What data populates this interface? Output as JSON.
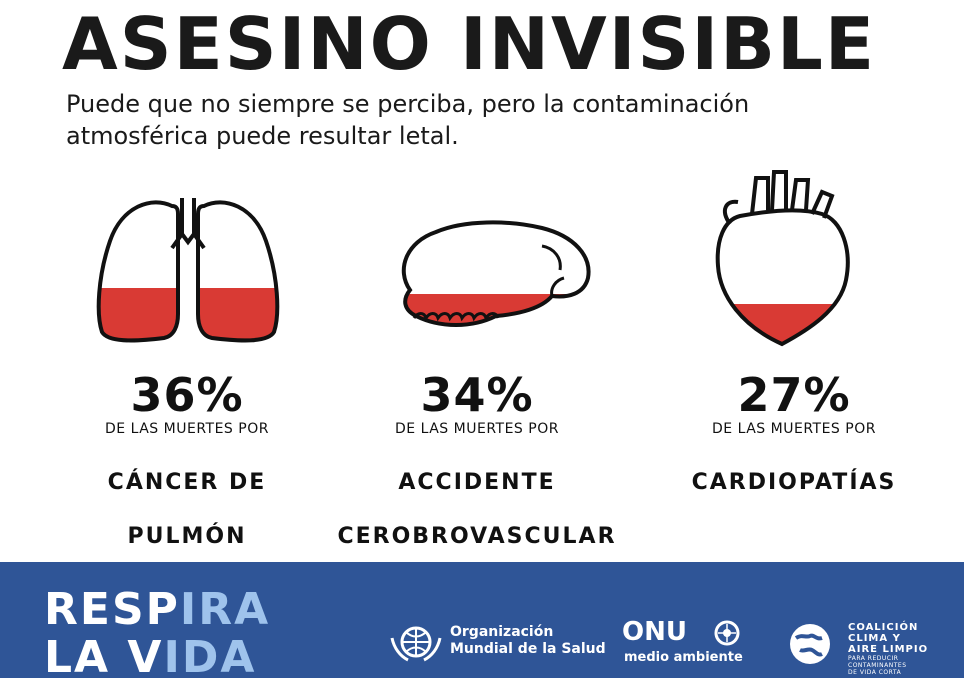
{
  "header": {
    "title": "ASESINO INVISIBLE",
    "subtitle_line1": "Puede que no siempre se perciba, pero la contaminación",
    "subtitle_line2": "atmosférica puede resultar letal."
  },
  "stats": [
    {
      "percent": "36%",
      "lead": "DE LAS MUERTES POR",
      "cause_line1": "CÁNCER DE",
      "cause_line2": "PULMÓN",
      "organ_icon": "lungs-icon",
      "fill_fraction": 0.36
    },
    {
      "percent": "34%",
      "lead": "DE LAS MUERTES POR",
      "cause_line1": "ACCIDENTE",
      "cause_line2": "CEROBROVASCULAR",
      "organ_icon": "brain-icon",
      "fill_fraction": 0.34
    },
    {
      "percent": "27%",
      "lead": "DE LAS MUERTES POR",
      "cause_line1": "CARDIOPATÍAS",
      "cause_line2": "",
      "organ_icon": "heart-icon",
      "fill_fraction": 0.27
    }
  ],
  "footer": {
    "campaign_line1_white": "RESP",
    "campaign_line1_light": "IRA",
    "campaign_line2_white": "LA V",
    "campaign_line2_light": "IDA",
    "who_line1": "Organización",
    "who_line2": "Mundial de la Salud",
    "onu": "ONU",
    "onu_sub": "medio ambiente",
    "ccac_line1": "COALICIÓN",
    "ccac_line2": "CLIMA Y",
    "ccac_line3": "AIRE LIMPIO",
    "ccac_line4": "PARA REDUCIR",
    "ccac_line5": "CONTAMINANTES",
    "ccac_line6": "DE VIDA CORTA"
  },
  "colors": {
    "fill_red": "#d93a34",
    "footer_blue": "#2f5597",
    "light_blue": "#9fc3ec",
    "ink": "#111111"
  }
}
